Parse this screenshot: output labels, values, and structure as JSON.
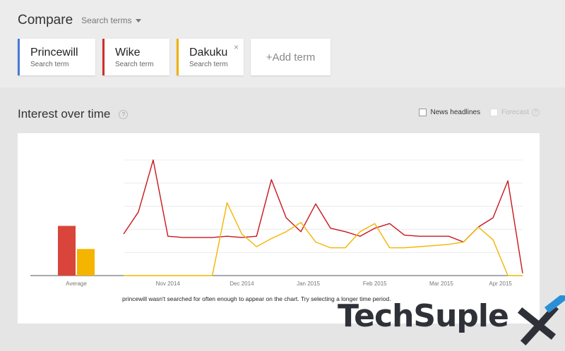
{
  "header": {
    "title": "Compare",
    "search_terms_label": "Search terms"
  },
  "terms": [
    {
      "name": "Princewill",
      "sub": "Search term",
      "color": "#4a7bd6"
    },
    {
      "name": "Wike",
      "sub": "Search term",
      "color": "#d22d2d"
    },
    {
      "name": "Dakuku",
      "sub": "Search term",
      "color": "#f2b000"
    }
  ],
  "add_term_label": "+Add term",
  "iot": {
    "title": "Interest over time",
    "help": "?",
    "news_label": "News headlines",
    "forecast_label": "Forecast"
  },
  "note": "princewill wasn't searched for often enough to appear on the chart. Try selecting a longer time period.",
  "watermark": {
    "text": "TechSuple"
  },
  "chart_data": {
    "type": "line",
    "title": "",
    "ylim": [
      0,
      100
    ],
    "x_tick_labels": [
      "Nov 2014",
      "Dec 2014",
      "Jan 2015",
      "Feb 2015",
      "Mar 2015",
      "Apr 2015"
    ],
    "x_tick_positions": [
      3,
      8,
      12.5,
      17,
      21.5,
      25.5
    ],
    "average": {
      "label": "Average",
      "bars": [
        {
          "name": "Wike",
          "value": 43,
          "color": "#d9453a"
        },
        {
          "name": "Dakuku",
          "value": 23,
          "color": "#f4b400"
        }
      ]
    },
    "series": [
      {
        "name": "Wike",
        "color": "#c8161d",
        "values": [
          36,
          55,
          100,
          34,
          33,
          33,
          33,
          34,
          33,
          34,
          83,
          50,
          38,
          62,
          41,
          38,
          34,
          41,
          45,
          35,
          34,
          34,
          34,
          29,
          42,
          50,
          82,
          2
        ]
      },
      {
        "name": "Dakuku",
        "color": "#f4b400",
        "values": [
          0,
          0,
          0,
          0,
          0,
          0,
          0,
          63,
          36,
          25,
          32,
          38,
          46,
          29,
          24,
          24,
          38,
          45,
          24,
          24,
          25,
          26,
          27,
          29,
          42,
          31,
          0,
          0
        ]
      }
    ]
  }
}
